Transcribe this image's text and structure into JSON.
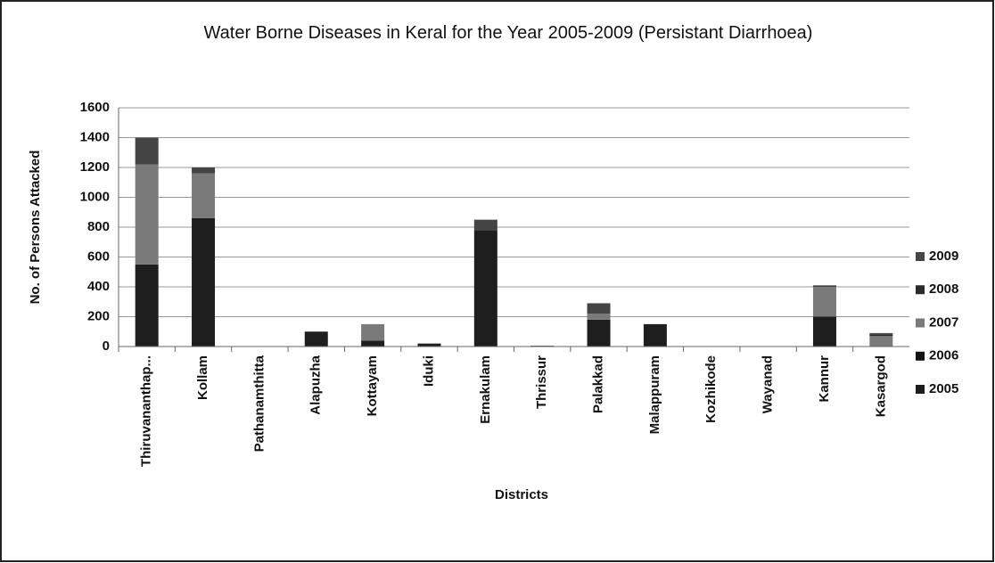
{
  "chart_data": {
    "type": "bar",
    "stacked": true,
    "title": "Water Borne Diseases in Keral for the Year 2005-2009 (Persistant Diarrhoea)",
    "x_label": "Districts",
    "y_label": "No. of Persons Attacked",
    "categories": [
      "Thiruvananthap...",
      "Kollam",
      "Pathanamthitta",
      "Alapuzha",
      "Kottayam",
      "Iduki",
      "Ernakulam",
      "Thrissur",
      "Palakkad",
      "Malappuram",
      "Kozhikode",
      "Wayanad",
      "Kannur",
      "Kasargod"
    ],
    "series": [
      {
        "name": "2005",
        "color": "#1e1e1e",
        "values": [
          550,
          860,
          0,
          100,
          40,
          20,
          780,
          5,
          180,
          150,
          0,
          0,
          200,
          0
        ]
      },
      {
        "name": "2006",
        "color": "#111111",
        "values": [
          0,
          0,
          0,
          0,
          0,
          0,
          0,
          0,
          0,
          0,
          0,
          0,
          0,
          0
        ]
      },
      {
        "name": "2007",
        "color": "#7a7a7a",
        "values": [
          670,
          300,
          0,
          0,
          110,
          0,
          0,
          0,
          40,
          0,
          0,
          0,
          200,
          70
        ]
      },
      {
        "name": "2008",
        "color": "#2a2a2a",
        "values": [
          0,
          0,
          0,
          0,
          0,
          0,
          0,
          0,
          0,
          0,
          0,
          0,
          0,
          10
        ]
      },
      {
        "name": "2009",
        "color": "#444444",
        "values": [
          180,
          40,
          0,
          0,
          0,
          0,
          70,
          0,
          70,
          0,
          0,
          0,
          10,
          10
        ]
      }
    ],
    "ylim": [
      0,
      1600
    ],
    "yticks": [
      0,
      200,
      400,
      600,
      800,
      1000,
      1200,
      1400,
      1600
    ],
    "grid": true,
    "legend": "right"
  }
}
